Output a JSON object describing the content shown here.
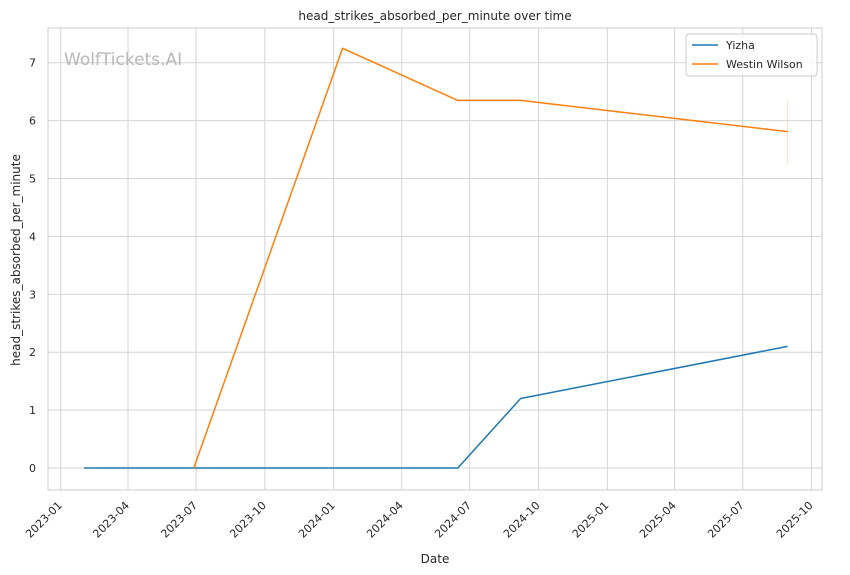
{
  "watermark": "WolfTickets.AI",
  "chart_data": {
    "type": "line",
    "title": "head_strikes_absorbed_per_minute over time",
    "xlabel": "Date",
    "ylabel": "head_strikes_absorbed_per_minute",
    "x_ticks": [
      "2023-01",
      "2023-04",
      "2023-07",
      "2023-10",
      "2024-01",
      "2024-04",
      "2024-07",
      "2024-10",
      "2025-01",
      "2025-04",
      "2025-07",
      "2025-10"
    ],
    "y_ticks": [
      0,
      1,
      2,
      3,
      4,
      5,
      6,
      7
    ],
    "xlim": [
      "2022-12-15",
      "2025-10-15"
    ],
    "ylim": [
      -0.38,
      7.6
    ],
    "grid": true,
    "legend_position": "top-right",
    "series": [
      {
        "name": "Yizha",
        "color": "#1f77b4",
        "points": [
          {
            "x": "2023-02-01",
            "y": 0
          },
          {
            "x": "2023-06-28",
            "y": 0
          },
          {
            "x": "2024-06-15",
            "y": 0
          },
          {
            "x": "2024-09-07",
            "y": 1.2
          },
          {
            "x": "2025-08-30",
            "y": 2.1
          }
        ]
      },
      {
        "name": "Westin Wilson",
        "color": "#ff7f0e",
        "points": [
          {
            "x": "2023-06-28",
            "y": 0
          },
          {
            "x": "2024-01-13",
            "y": 7.25
          },
          {
            "x": "2024-06-15",
            "y": 6.35
          },
          {
            "x": "2024-09-07",
            "y": 6.35
          },
          {
            "x": "2025-08-30",
            "y": 5.81
          }
        ],
        "error_band": {
          "x": "2025-08-30",
          "low": 5.25,
          "high": 6.35
        }
      }
    ]
  }
}
